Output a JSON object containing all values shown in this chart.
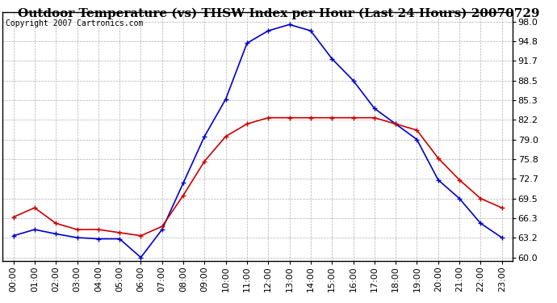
{
  "title": "Outdoor Temperature (vs) THSW Index per Hour (Last 24 Hours) 20070729",
  "copyright": "Copyright 2007 Cartronics.com",
  "hours": [
    0,
    1,
    2,
    3,
    4,
    5,
    6,
    7,
    8,
    9,
    10,
    11,
    12,
    13,
    14,
    15,
    16,
    17,
    18,
    19,
    20,
    21,
    22,
    23
  ],
  "hour_labels": [
    "00:00",
    "01:00",
    "02:00",
    "03:00",
    "04:00",
    "05:00",
    "06:00",
    "07:00",
    "08:00",
    "09:00",
    "10:00",
    "11:00",
    "12:00",
    "13:00",
    "14:00",
    "15:00",
    "16:00",
    "17:00",
    "18:00",
    "19:00",
    "20:00",
    "21:00",
    "22:00",
    "23:00"
  ],
  "thsw": [
    63.5,
    64.5,
    63.8,
    63.2,
    63.0,
    63.0,
    60.0,
    64.5,
    72.0,
    79.5,
    85.5,
    94.5,
    96.5,
    97.5,
    96.5,
    92.0,
    88.5,
    84.0,
    81.5,
    79.0,
    72.5,
    69.5,
    65.5,
    63.2
  ],
  "temp": [
    66.5,
    68.0,
    65.5,
    64.5,
    64.5,
    64.0,
    63.5,
    65.0,
    70.0,
    75.5,
    79.5,
    81.5,
    82.5,
    82.5,
    82.5,
    82.5,
    82.5,
    82.5,
    81.5,
    80.5,
    76.0,
    72.5,
    69.5,
    68.0
  ],
  "thsw_color": "#0000cc",
  "temp_color": "#cc0000",
  "bg_color": "#ffffff",
  "plot_bg_color": "#ffffff",
  "grid_color": "#b0b0b0",
  "yticks": [
    60.0,
    63.2,
    66.3,
    69.5,
    72.7,
    75.8,
    79.0,
    82.2,
    85.3,
    88.5,
    91.7,
    94.8,
    98.0
  ],
  "ylim": [
    59.5,
    99.5
  ],
  "title_fontsize": 11,
  "copyright_fontsize": 7,
  "tick_fontsize": 8,
  "marker": "+"
}
